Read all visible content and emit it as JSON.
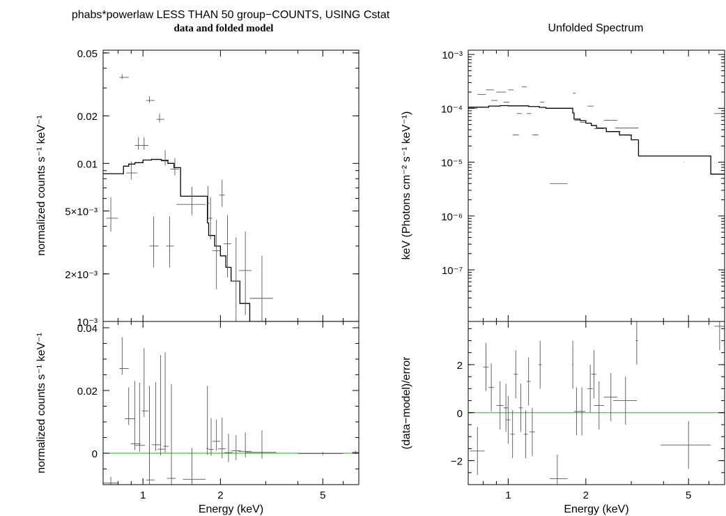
{
  "title": "phabs*powerlaw LESS THAN 50 group−COUNTS, USING Cstat",
  "subtitle": "data and folded model",
  "right_title": "Unfolded Spectrum",
  "colors": {
    "axis": "#000000",
    "data": "#555555",
    "model": "#000000",
    "zero_line": "#33cc33"
  },
  "chart_data": [
    {
      "id": "folded",
      "type": "line",
      "title": "phabs*powerlaw LESS THAN 50 group−COUNTS, USING Cstat",
      "subtitle": "data and folded model",
      "ylabel": "normalized counts s⁻¹ keV⁻¹",
      "xscale": "log",
      "yscale": "log",
      "xlim": [
        0.7,
        6.9
      ],
      "ylim": [
        0.001,
        0.052
      ],
      "yticks": [
        {
          "v": 0.05,
          "label": "0.05"
        },
        {
          "v": 0.02,
          "label": "0.02"
        },
        {
          "v": 0.01,
          "label": "0.01"
        },
        {
          "v": 0.005,
          "label": "5×10⁻³"
        },
        {
          "v": 0.002,
          "label": "2×10⁻³"
        },
        {
          "v": 0.001,
          "label": "10⁻³"
        }
      ],
      "model_steps": [
        [
          0.7,
          0.0086
        ],
        [
          0.84,
          0.0096
        ],
        [
          0.88,
          0.0099
        ],
        [
          0.93,
          0.0101
        ],
        [
          1.0,
          0.0105
        ],
        [
          1.08,
          0.0106
        ],
        [
          1.18,
          0.0104
        ],
        [
          1.25,
          0.01
        ],
        [
          1.32,
          0.0094
        ],
        [
          1.4,
          0.0062
        ],
        [
          1.78,
          0.0042
        ],
        [
          1.8,
          0.0035
        ],
        [
          1.9,
          0.003
        ],
        [
          2.0,
          0.0026
        ],
        [
          2.1,
          0.0022
        ],
        [
          2.2,
          0.0018
        ],
        [
          2.38,
          0.0013
        ],
        [
          2.6,
          0.001
        ]
      ],
      "points": [
        [
          0.75,
          0.0045,
          0.03,
          0.05,
          0.0008,
          0.0016
        ],
        [
          0.83,
          0.035,
          0.02,
          0.05,
          0.0008,
          0.0016
        ],
        [
          0.9,
          0.0087,
          0.04,
          0.05,
          0.0008,
          0.0016
        ],
        [
          0.96,
          0.013,
          0.03,
          0.05,
          0.0008,
          0.0016
        ],
        [
          1.01,
          0.013,
          0.02,
          0.04,
          0.0008,
          0.0016
        ],
        [
          1.06,
          0.025,
          0.03,
          0.05,
          0.0008,
          0.0016
        ],
        [
          1.1,
          0.003,
          0.04,
          0.05,
          0.0008,
          0.0016
        ],
        [
          1.16,
          0.019,
          0.03,
          0.05,
          0.0008,
          0.0016
        ],
        [
          1.22,
          0.0105,
          0.03,
          0.04,
          0.0008,
          0.0016
        ],
        [
          1.27,
          0.003,
          0.04,
          0.05,
          0.0008,
          0.0016
        ],
        [
          1.33,
          0.0092,
          0.05,
          0.05,
          0.0008,
          0.0016
        ],
        [
          1.55,
          0.0055,
          0.2,
          0.2,
          0.0008,
          0.0016
        ],
        [
          1.79,
          0.0056,
          0.02,
          0.02,
          0.0012,
          0.0016
        ],
        [
          1.83,
          0.0045,
          0.03,
          0.03,
          0.0012,
          0.0016
        ],
        [
          1.93,
          0.0028,
          0.07,
          0.07,
          0.0012,
          0.0016
        ],
        [
          2.03,
          0.0063,
          0.05,
          0.05,
          0.001,
          0.0016
        ],
        [
          2.13,
          0.0031,
          0.07,
          0.07,
          0.0012,
          0.0016
        ],
        [
          2.3,
          0.0018,
          0.1,
          0.1,
          0.0009,
          0.0016
        ],
        [
          2.5,
          0.0021,
          0.14,
          0.14,
          0.001,
          0.0016
        ],
        [
          2.9,
          0.0014,
          0.3,
          0.3,
          0.0009,
          0.0012
        ]
      ]
    },
    {
      "id": "folded_resid",
      "type": "line",
      "ylabel": "normalized counts s⁻¹ keV⁻¹",
      "xlabel": "Energy (keV)",
      "xscale": "log",
      "yscale": "linear",
      "xlim": [
        0.7,
        6.9
      ],
      "ylim": [
        -0.01,
        0.042
      ],
      "yticks": [
        {
          "v": 0.04,
          "label": "0.04"
        },
        {
          "v": 0.02,
          "label": "0.02"
        },
        {
          "v": 0,
          "label": "0"
        }
      ],
      "xticks": [
        {
          "v": 1,
          "label": "1"
        },
        {
          "v": 2,
          "label": "2"
        },
        {
          "v": 5,
          "label": "5"
        }
      ],
      "points": [
        [
          0.75,
          -0.0095,
          0.05,
          0.05,
          0.002,
          0.002
        ],
        [
          0.83,
          0.027,
          0.02,
          0.05,
          0.002,
          0.01
        ],
        [
          0.88,
          0.011,
          0.03,
          0.05,
          0.002,
          0.01
        ],
        [
          0.93,
          0.003,
          0.035,
          0.05,
          0.002,
          0.02
        ],
        [
          0.97,
          0.0025,
          0.04,
          0.05,
          0.002,
          0.02
        ],
        [
          1.01,
          0.0135,
          0.02,
          0.04,
          0.002,
          0.02
        ],
        [
          1.06,
          -0.0085,
          0.03,
          0.05,
          0.002,
          0.03
        ],
        [
          1.12,
          0.0027,
          0.035,
          0.05,
          0.002,
          0.02
        ],
        [
          1.17,
          0.0013,
          0.03,
          0.05,
          0.002,
          0.03
        ],
        [
          1.22,
          0.0022,
          0.02,
          0.04,
          0.002,
          0.03
        ],
        [
          1.29,
          -0.008,
          0.05,
          0.05,
          0.002,
          0.03
        ],
        [
          1.55,
          -0.0083,
          0.12,
          0.2,
          0.005,
          0.01
        ],
        [
          1.78,
          0.0015,
          0.02,
          0.02,
          0.002,
          0.02
        ],
        [
          1.84,
          0.0012,
          0.04,
          0.04,
          0.002,
          0.01
        ],
        [
          1.93,
          0.0038,
          0.07,
          0.07,
          0.003,
          0.007
        ],
        [
          2.03,
          0.0014,
          0.07,
          0.07,
          0.003,
          0.01
        ],
        [
          2.15,
          0.0002,
          0.08,
          0.08,
          0.003,
          0.006
        ],
        [
          2.3,
          0.0008,
          0.1,
          0.1,
          0.003,
          0.005
        ],
        [
          2.5,
          0.0006,
          0.14,
          0.14,
          0.002,
          0.006
        ],
        [
          2.9,
          0.0003,
          0.4,
          0.4,
          0.002,
          0.007
        ],
        [
          5.0,
          -0.0001,
          1.0,
          1.0,
          0.0005,
          0.0005
        ],
        [
          6.7,
          0.0003,
          0.2,
          0.2,
          0.0005,
          0.0005
        ]
      ]
    },
    {
      "id": "unfolded",
      "type": "line",
      "title": "Unfolded Spectrum",
      "ylabel": "keV (Photons cm⁻² s⁻¹ keV⁻¹)",
      "xscale": "log",
      "yscale": "log",
      "xlim": [
        0.7,
        6.9
      ],
      "ylim": [
        1.1e-08,
        0.0012
      ],
      "yticks": [
        {
          "v": 0.001,
          "label": "10⁻³"
        },
        {
          "v": 0.0001,
          "label": "10⁻⁴"
        },
        {
          "v": 1e-05,
          "label": "10⁻⁵"
        },
        {
          "v": 1e-06,
          "label": "10⁻⁶"
        },
        {
          "v": 1e-07,
          "label": "10⁻⁷"
        }
      ],
      "model_steps": [
        [
          0.7,
          0.000105
        ],
        [
          0.84,
          0.00011
        ],
        [
          0.93,
          0.000112
        ],
        [
          1.0,
          0.000111
        ],
        [
          1.2,
          0.000108
        ],
        [
          1.32,
          0.000104
        ],
        [
          1.4,
          0.0001
        ],
        [
          1.78,
          8.2e-05
        ],
        [
          1.8,
          6.3e-05
        ],
        [
          1.9,
          5.9e-05
        ],
        [
          2.0,
          5.3e-05
        ],
        [
          2.1,
          4.8e-05
        ],
        [
          2.2,
          4.3e-05
        ],
        [
          2.4,
          3.7e-05
        ],
        [
          2.7,
          3.2e-05
        ],
        [
          3.0,
          2.6e-05
        ],
        [
          3.2,
          1.3e-05
        ],
        [
          6.1,
          6e-06
        ]
      ],
      "points": [
        [
          0.72,
          0.0001,
          0.02,
          0.04,
          1.1e-08,
          1.1e-08
        ],
        [
          0.78,
          0.00018,
          0.02,
          0.04,
          1.1e-08,
          1.1e-08
        ],
        [
          0.84,
          0.00022,
          0.02,
          0.04,
          1.1e-08,
          1.1e-08
        ],
        [
          0.88,
          0.00014,
          0.02,
          0.03,
          1.1e-08,
          1.1e-08
        ],
        [
          0.93,
          0.0002,
          0.03,
          0.05,
          1.1e-08,
          1.1e-08
        ],
        [
          0.98,
          0.00013,
          0.02,
          0.03,
          1.1e-08,
          1.1e-08
        ],
        [
          1.02,
          0.00022,
          0.02,
          0.03,
          1.1e-08,
          1.1e-08
        ],
        [
          1.06,
          3.2e-05,
          0.02,
          0.04,
          1.1e-08,
          1.1e-08
        ],
        [
          1.1,
          8e-05,
          0.02,
          0.03,
          1.1e-08,
          1.1e-08
        ],
        [
          1.15,
          0.00025,
          0.02,
          0.03,
          1.1e-08,
          1.1e-08
        ],
        [
          1.2,
          8e-05,
          0.02,
          0.03,
          1.1e-08,
          1.1e-08
        ],
        [
          1.27,
          3.2e-05,
          0.03,
          0.04,
          1.1e-08,
          1.1e-08
        ],
        [
          1.35,
          0.00013,
          0.02,
          0.03,
          1.1e-08,
          1.1e-08
        ],
        [
          1.55,
          4e-06,
          0.1,
          0.15,
          1.1e-08,
          1.1e-08
        ],
        [
          1.8,
          0.00019,
          0.02,
          0.03,
          1.1e-08,
          1.1e-08
        ],
        [
          1.85,
          6e-05,
          0.04,
          0.05,
          1.1e-08,
          1.1e-08
        ],
        [
          1.95,
          5.5e-05,
          0.05,
          0.06,
          1.1e-08,
          1.1e-08
        ],
        [
          2.08,
          0.00011,
          0.05,
          0.06,
          1.1e-08,
          1.1e-08
        ],
        [
          2.25,
          4.2e-05,
          0.1,
          0.1,
          1.1e-08,
          1.1e-08
        ],
        [
          2.5,
          6e-05,
          0.15,
          0.15,
          1.1e-08,
          1.1e-08
        ],
        [
          2.9,
          4.3e-05,
          0.3,
          0.3,
          1.1e-08,
          1.1e-08
        ],
        [
          4.8,
          1e-05,
          0.01,
          0.01,
          1.1e-08,
          1.1e-08
        ],
        [
          6.6,
          8e-05,
          0.3,
          0.3,
          1.1e-08,
          1.1e-08
        ]
      ]
    },
    {
      "id": "unfolded_resid",
      "type": "line",
      "ylabel": "(data−model)/error",
      "xlabel": "Energy (keV)",
      "xscale": "log",
      "yscale": "linear",
      "xlim": [
        0.7,
        6.9
      ],
      "ylim": [
        -3.0,
        3.8
      ],
      "yticks": [
        {
          "v": 2,
          "label": "2"
        },
        {
          "v": 0,
          "label": "0"
        },
        {
          "v": -2,
          "label": "−2"
        }
      ],
      "xticks": [
        {
          "v": 1,
          "label": "1"
        },
        {
          "v": 2,
          "label": "2"
        },
        {
          "v": 5,
          "label": "5"
        }
      ],
      "points": [
        [
          0.76,
          -1.6,
          0.05,
          0.05,
          1.0,
          1.0
        ],
        [
          0.82,
          1.9,
          0.02,
          0.02,
          1.0,
          1.0
        ],
        [
          0.86,
          1.05,
          0.02,
          0.02,
          1.0,
          1.0
        ],
        [
          0.93,
          0.3,
          0.03,
          0.03,
          1.0,
          1.0
        ],
        [
          0.98,
          0.2,
          0.02,
          0.02,
          1.0,
          1.0
        ],
        [
          1.0,
          -0.3,
          0.02,
          0.02,
          1.0,
          1.0
        ],
        [
          1.04,
          -0.9,
          0.02,
          0.02,
          1.0,
          1.0
        ],
        [
          1.07,
          1.6,
          0.02,
          0.02,
          1.0,
          1.0
        ],
        [
          1.12,
          0.2,
          0.02,
          0.02,
          1.0,
          1.0
        ],
        [
          1.17,
          -0.9,
          0.02,
          0.02,
          1.0,
          1.0
        ],
        [
          1.2,
          1.3,
          0.02,
          0.02,
          1.0,
          1.0
        ],
        [
          1.24,
          -0.8,
          0.03,
          0.03,
          1.0,
          1.0
        ],
        [
          1.33,
          2.0,
          0.02,
          0.02,
          1.0,
          1.0
        ],
        [
          1.55,
          -2.75,
          0.1,
          0.15,
          1.0,
          1.0
        ],
        [
          1.78,
          2.0,
          0.01,
          0.01,
          1.0,
          1.0
        ],
        [
          1.84,
          0.05,
          0.04,
          0.04,
          1.0,
          1.0
        ],
        [
          1.93,
          0.05,
          0.06,
          0.06,
          1.0,
          1.0
        ],
        [
          2.08,
          1.0,
          0.05,
          0.05,
          1.0,
          1.0
        ],
        [
          2.15,
          1.6,
          0.05,
          0.05,
          1.0,
          1.0
        ],
        [
          2.25,
          0.3,
          0.1,
          0.1,
          1.0,
          1.0
        ],
        [
          2.5,
          0.65,
          0.15,
          0.15,
          1.0,
          1.0
        ],
        [
          2.85,
          0.5,
          0.3,
          0.3,
          1.0,
          1.0
        ],
        [
          3.15,
          3.0,
          0.03,
          0.03,
          1.0,
          1.0
        ],
        [
          5.0,
          -1.35,
          1.1,
          1.1,
          1.0,
          1.0
        ],
        [
          6.6,
          3.6,
          0.3,
          0.3,
          1.0,
          1.0
        ]
      ]
    }
  ]
}
